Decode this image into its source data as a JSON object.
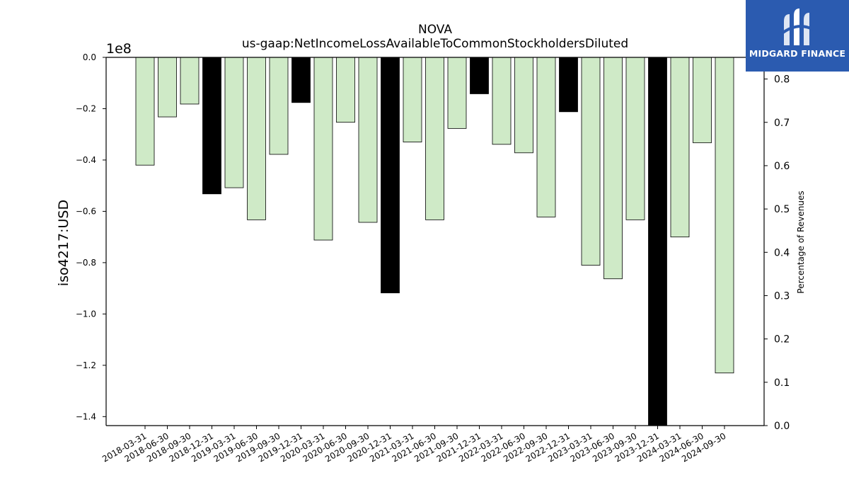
{
  "chart_data": {
    "type": "bar",
    "title": "NOVA",
    "subtitle": "us-gaap:NetIncomeLossAvailableToCommonStockholdersDiluted",
    "ylabel": "iso4217:USD",
    "y2label": "Percentage of Revenues",
    "y_offset_label": "1e8",
    "ylim": [
      -1.435,
      0.0
    ],
    "y_ticks": [
      0.0,
      -0.2,
      -0.4,
      -0.6,
      -0.8,
      -1.0,
      -1.2,
      -1.4
    ],
    "y_tick_labels": [
      "0.0",
      "−0.2",
      "−0.4",
      "−0.6",
      "−0.8",
      "−1.0",
      "−1.2",
      "−1.4"
    ],
    "y2lim": [
      0.0,
      0.85
    ],
    "y2_ticks": [
      0.0,
      0.1,
      0.2,
      0.3,
      0.4,
      0.5,
      0.6,
      0.7,
      0.8
    ],
    "y2_tick_labels": [
      "0.0",
      "0.1",
      "0.2",
      "0.3",
      "0.4",
      "0.5",
      "0.6",
      "0.7",
      "0.8"
    ],
    "categories": [
      "2018-03-31",
      "2018-06-30",
      "2018-09-30",
      "2018-12-31",
      "2019-03-31",
      "2019-06-30",
      "2019-09-30",
      "2019-12-31",
      "2020-03-31",
      "2020-06-30",
      "2020-09-30",
      "2020-12-31",
      "2021-03-31",
      "2021-06-30",
      "2021-09-30",
      "2021-12-31",
      "2022-03-31",
      "2022-06-30",
      "2022-09-30",
      "2022-12-31",
      "2023-03-31",
      "2023-06-30",
      "2023-09-30",
      "2023-12-31",
      "2024-03-31",
      "2024-06-30",
      "2024-09-30"
    ],
    "values": [
      -0.42,
      -0.232,
      -0.182,
      -0.532,
      -0.508,
      -0.633,
      -0.378,
      -0.176,
      -0.712,
      -0.253,
      -0.643,
      -0.918,
      -0.33,
      -0.633,
      -0.277,
      -0.142,
      -0.339,
      -0.372,
      -0.622,
      -0.212,
      -0.81,
      -0.863,
      -0.633,
      -1.435,
      -0.7,
      -0.333,
      -1.23
    ],
    "annual": [
      false,
      false,
      false,
      true,
      false,
      false,
      false,
      true,
      false,
      false,
      false,
      true,
      false,
      false,
      false,
      true,
      false,
      false,
      false,
      true,
      false,
      false,
      false,
      true,
      false,
      false,
      false
    ],
    "colors": {
      "quarter": "#cfeac7",
      "annual": "#000000",
      "edge": "#000000"
    },
    "grid": false,
    "legend": "none"
  },
  "logo": {
    "text": "MIDGARD FINANCE",
    "background": "#2b5bb0",
    "icon": "midgard-logo-icon"
  }
}
